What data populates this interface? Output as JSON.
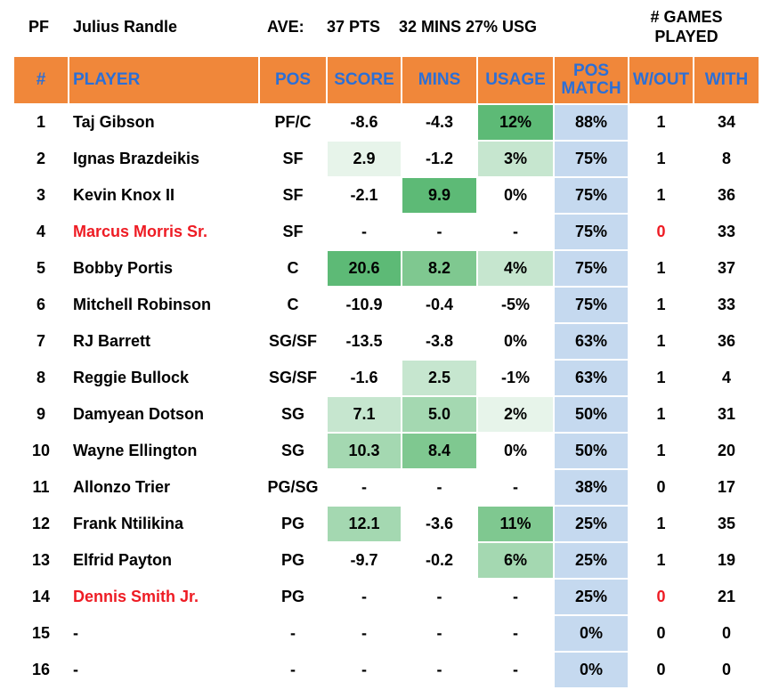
{
  "header": {
    "pos": "PF",
    "name": "Julius Randle",
    "ave_label": "AVE:",
    "pts": "37 PTS",
    "mins_usg": "32 MINS 27% USG",
    "games_played_l1": "# GAMES",
    "games_played_l2": "PLAYED"
  },
  "columns": {
    "num": "#",
    "player": "PLAYER",
    "pos": "POS",
    "score": "SCORE",
    "mins": "MINS",
    "usage": "USAGE",
    "pos_match_l1": "POS",
    "pos_match_l2": "MATCH",
    "without": "W/OUT",
    "with": "WITH"
  },
  "colors": {
    "header_bg": "#f0873a",
    "header_text": "#2c6fd6",
    "highlight_red": "#ee1c24",
    "pos_match_bg": "#c5d9ef",
    "green_scale": [
      "#5dba76",
      "#7fc890",
      "#a4d8b1",
      "#c6e6cf",
      "#e7f4ea"
    ]
  },
  "rows": [
    {
      "num": "1",
      "player": "Taj Gibson",
      "red": false,
      "pos": "PF/C",
      "score": "-8.6",
      "mins": "-4.3",
      "usage": "12%",
      "pos_match": "88%",
      "without": "1",
      "with": "34"
    },
    {
      "num": "2",
      "player": "Ignas Brazdeikis",
      "red": false,
      "pos": "SF",
      "score": "2.9",
      "mins": "-1.2",
      "usage": "3%",
      "pos_match": "75%",
      "without": "1",
      "with": "8"
    },
    {
      "num": "3",
      "player": "Kevin Knox II",
      "red": false,
      "pos": "SF",
      "score": "-2.1",
      "mins": "9.9",
      "usage": "0%",
      "pos_match": "75%",
      "without": "1",
      "with": "36"
    },
    {
      "num": "4",
      "player": "Marcus Morris Sr.",
      "red": true,
      "pos": "SF",
      "score": "-",
      "mins": "-",
      "usage": "-",
      "pos_match": "75%",
      "without": "0",
      "with": "33"
    },
    {
      "num": "5",
      "player": "Bobby Portis",
      "red": false,
      "pos": "C",
      "score": "20.6",
      "mins": "8.2",
      "usage": "4%",
      "pos_match": "75%",
      "without": "1",
      "with": "37"
    },
    {
      "num": "6",
      "player": "Mitchell Robinson",
      "red": false,
      "pos": "C",
      "score": "-10.9",
      "mins": "-0.4",
      "usage": "-5%",
      "pos_match": "75%",
      "without": "1",
      "with": "33"
    },
    {
      "num": "7",
      "player": "RJ Barrett",
      "red": false,
      "pos": "SG/SF",
      "score": "-13.5",
      "mins": "-3.8",
      "usage": "0%",
      "pos_match": "63%",
      "without": "1",
      "with": "36"
    },
    {
      "num": "8",
      "player": "Reggie Bullock",
      "red": false,
      "pos": "SG/SF",
      "score": "-1.6",
      "mins": "2.5",
      "usage": "-1%",
      "pos_match": "63%",
      "without": "1",
      "with": "4"
    },
    {
      "num": "9",
      "player": "Damyean Dotson",
      "red": false,
      "pos": "SG",
      "score": "7.1",
      "mins": "5.0",
      "usage": "2%",
      "pos_match": "50%",
      "without": "1",
      "with": "31"
    },
    {
      "num": "10",
      "player": "Wayne Ellington",
      "red": false,
      "pos": "SG",
      "score": "10.3",
      "mins": "8.4",
      "usage": "0%",
      "pos_match": "50%",
      "without": "1",
      "with": "20"
    },
    {
      "num": "11",
      "player": "Allonzo Trier",
      "red": false,
      "pos": "PG/SG",
      "score": "-",
      "mins": "-",
      "usage": "-",
      "pos_match": "38%",
      "without": "0",
      "with": "17"
    },
    {
      "num": "12",
      "player": "Frank Ntilikina",
      "red": false,
      "pos": "PG",
      "score": "12.1",
      "mins": "-3.6",
      "usage": "11%",
      "pos_match": "25%",
      "without": "1",
      "with": "35"
    },
    {
      "num": "13",
      "player": "Elfrid Payton",
      "red": false,
      "pos": "PG",
      "score": "-9.7",
      "mins": "-0.2",
      "usage": "6%",
      "pos_match": "25%",
      "without": "1",
      "with": "19"
    },
    {
      "num": "14",
      "player": "Dennis Smith Jr.",
      "red": true,
      "pos": "PG",
      "score": "-",
      "mins": "-",
      "usage": "-",
      "pos_match": "25%",
      "without": "0",
      "with": "21"
    },
    {
      "num": "15",
      "player": "-",
      "red": false,
      "pos": "-",
      "score": "-",
      "mins": "-",
      "usage": "-",
      "pos_match": "0%",
      "without": "0",
      "with": "0"
    },
    {
      "num": "16",
      "player": "-",
      "red": false,
      "pos": "-",
      "score": "-",
      "mins": "-",
      "usage": "-",
      "pos_match": "0%",
      "without": "0",
      "with": "0"
    }
  ]
}
